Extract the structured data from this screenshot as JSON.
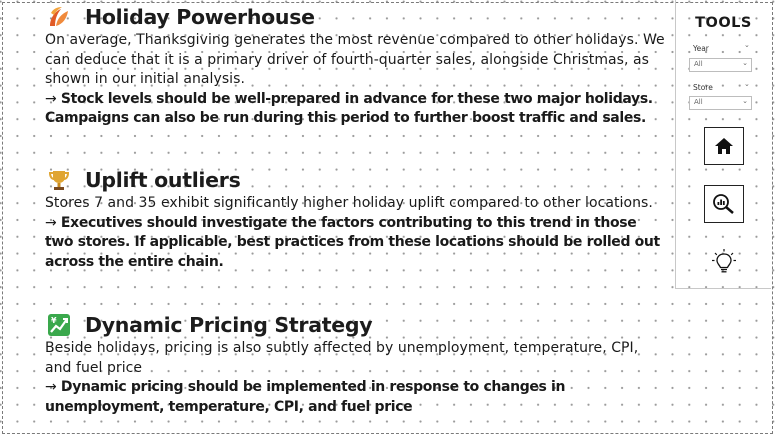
{
  "sections": [
    {
      "icon": "leaf-icon",
      "title": "Holiday Powerhouse",
      "body": "On average, Thanksgiving generates the most revenue compared to other holidays. We can deduce that it is a primary driver of fourth-quarter sales, alongside Christmas, as shown in our initial analysis.",
      "arrow": "→",
      "action": "Stock levels should be well-prepared in advance for these two major holidays. Campaigns can also be run during this period to further boost traffic and sales."
    },
    {
      "icon": "trophy-icon",
      "title": "Uplift outliers",
      "body": "Stores 7 and 35 exhibit significantly higher holiday uplift compared to other locations.",
      "arrow": "→",
      "action": "Executives should investigate the factors contributing to this trend in those two stores. If applicable, best practices from these locations should be rolled out across the entire chain."
    },
    {
      "icon": "currency-chart-icon",
      "title": "Dynamic Pricing Strategy",
      "body": "Beside holidays, pricing is also subtly affected by unemployment, temperature, CPI, and fuel price",
      "arrow": "→",
      "action": "Dynamic pricing should be implemented in response to changes in unemployment, temperature, CPI, and fuel price"
    }
  ],
  "tools": {
    "title": "TOOLS",
    "year_label": "Year",
    "year_value": "All",
    "store_label": "Store",
    "store_value": "All",
    "buttons": [
      "home-icon",
      "zoom-chart-icon",
      "lightbulb-icon"
    ]
  },
  "colors": {
    "leaf_orange": "#e8662a",
    "trophy_gold": "#d9a23a",
    "money_green": "#37a64a"
  }
}
